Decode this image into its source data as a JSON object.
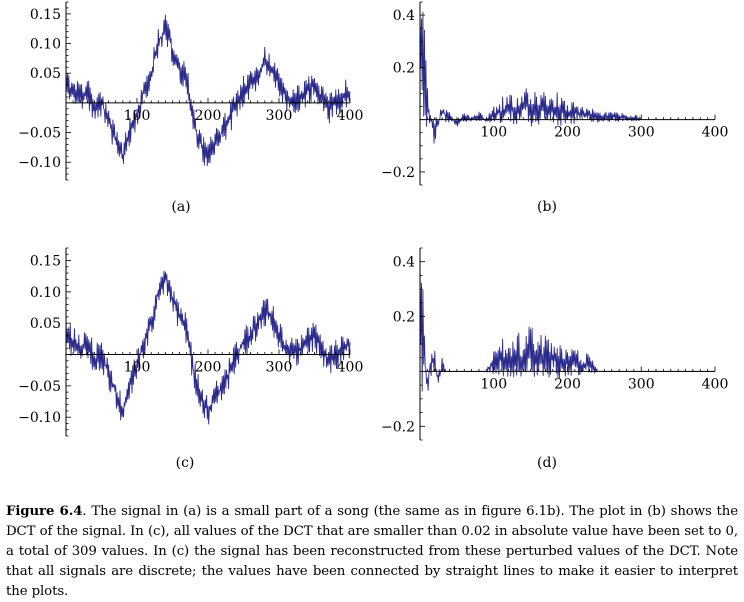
{
  "figure": {
    "caption_label": "Figure 6.4",
    "caption_text": ". The signal in (a) is a small part of a song (the same as in figure 6.1b). The plot in (b) shows the DCT of the signal. In (c), all values of the DCT that are smaller than 0.02 in absolute value have been set to 0, a total of 309 values. In (c) the signal has been reconstructed from these perturbed values of the DCT. Note that all signals are discrete; the values have been connected by straight lines to make it easier to interpret the plots."
  },
  "colors": {
    "line": "#2b2b8c",
    "axis": "#000000"
  },
  "chart_data": [
    {
      "id": "a",
      "type": "line",
      "panel_label": "(a)",
      "xlim": [
        0,
        400
      ],
      "ylim": [
        -0.13,
        0.17
      ],
      "xticks": [
        100,
        200,
        300,
        400
      ],
      "xtick_labels": [
        "100",
        "200",
        "300",
        "400"
      ],
      "yticks": [
        0.15,
        0.1,
        0.05,
        -0.05,
        -0.1
      ],
      "ytick_labels": [
        "0.15",
        "0.10",
        "0.05",
        "−0.05",
        "−0.10"
      ],
      "x": [
        0,
        10,
        20,
        30,
        40,
        50,
        60,
        70,
        80,
        90,
        100,
        110,
        120,
        130,
        140,
        150,
        160,
        170,
        180,
        190,
        200,
        210,
        220,
        230,
        240,
        250,
        260,
        270,
        280,
        290,
        300,
        310,
        320,
        330,
        340,
        350,
        360,
        370,
        380,
        390,
        400
      ],
      "values": [
        0.03,
        0.02,
        0.01,
        0.02,
        -0.01,
        0,
        -0.03,
        -0.06,
        -0.09,
        -0.05,
        -0.02,
        0.02,
        0.05,
        0.1,
        0.13,
        0.09,
        0.06,
        0.04,
        -0.03,
        -0.07,
        -0.09,
        -0.07,
        -0.05,
        -0.03,
        0,
        0.02,
        0.03,
        0.05,
        0.07,
        0.06,
        0.03,
        0.01,
        0,
        0.01,
        0.02,
        0.03,
        0.01,
        -0.01,
        0,
        0.01,
        0.02
      ]
    },
    {
      "id": "b",
      "type": "line",
      "panel_label": "(b)",
      "xlim": [
        0,
        400
      ],
      "ylim": [
        -0.25,
        0.45
      ],
      "xticks": [
        100,
        200,
        300,
        400
      ],
      "xtick_labels": [
        "100",
        "200",
        "300",
        "400"
      ],
      "yticks": [
        0.4,
        0.2,
        -0.2
      ],
      "ytick_labels": [
        "0.4",
        "0.2",
        "−0.2"
      ],
      "x": [
        0,
        10,
        20,
        30,
        40,
        50,
        60,
        70,
        80,
        90,
        100,
        110,
        120,
        130,
        140,
        150,
        160,
        170,
        180,
        190,
        200,
        210,
        220,
        230,
        240,
        250,
        260,
        270,
        280,
        290,
        300
      ],
      "values": [
        0.4,
        0.05,
        -0.05,
        0.03,
        0.01,
        -0.01,
        0.01,
        0,
        0.01,
        0,
        0.02,
        0.03,
        0.05,
        0.04,
        0.05,
        0.05,
        0.04,
        0.05,
        0.03,
        0.05,
        0.02,
        0.03,
        0.02,
        0.02,
        0.01,
        0.01,
        0.01,
        0.01,
        0.005,
        0.005,
        0.004
      ]
    },
    {
      "id": "c",
      "type": "line",
      "panel_label": "(c)",
      "xlim": [
        0,
        400
      ],
      "ylim": [
        -0.13,
        0.17
      ],
      "xticks": [
        100,
        200,
        300,
        400
      ],
      "xtick_labels": [
        "100",
        "200",
        "300",
        "400"
      ],
      "yticks": [
        0.15,
        0.1,
        0.05,
        -0.05,
        -0.1
      ],
      "ytick_labels": [
        "0.15",
        "0.10",
        "0.05",
        "−0.05",
        "−0.10"
      ],
      "x": [
        0,
        10,
        20,
        30,
        40,
        50,
        60,
        70,
        80,
        90,
        100,
        110,
        120,
        130,
        140,
        150,
        160,
        170,
        180,
        190,
        200,
        210,
        220,
        230,
        240,
        250,
        260,
        270,
        280,
        290,
        300,
        310,
        320,
        330,
        340,
        350,
        360,
        370,
        380,
        390,
        400
      ],
      "values": [
        0.03,
        0.02,
        0.01,
        0.02,
        -0.01,
        0,
        -0.03,
        -0.06,
        -0.09,
        -0.05,
        -0.02,
        0.02,
        0.05,
        0.1,
        0.13,
        0.09,
        0.06,
        0.04,
        -0.03,
        -0.07,
        -0.09,
        -0.07,
        -0.05,
        -0.03,
        0,
        0.02,
        0.03,
        0.05,
        0.07,
        0.06,
        0.03,
        0.01,
        0,
        0.01,
        0.02,
        0.03,
        0.01,
        -0.01,
        0,
        0.01,
        0.02
      ]
    },
    {
      "id": "d",
      "type": "line",
      "panel_label": "(d)",
      "xlim": [
        0,
        400
      ],
      "ylim": [
        -0.25,
        0.45
      ],
      "xticks": [
        100,
        200,
        300,
        400
      ],
      "xtick_labels": [
        "100",
        "200",
        "300",
        "400"
      ],
      "yticks": [
        0.4,
        0.2,
        -0.2
      ],
      "ytick_labels": [
        "0.4",
        "0.2",
        "−0.2"
      ],
      "x": [
        0,
        5,
        10,
        15,
        20,
        25,
        30,
        35,
        40,
        60,
        90,
        100,
        110,
        120,
        130,
        140,
        150,
        160,
        170,
        180,
        190,
        200,
        210,
        220,
        230,
        240,
        250,
        260,
        300,
        400
      ],
      "values": [
        0.4,
        0.08,
        -0.06,
        0.05,
        0.03,
        -0.03,
        0.02,
        0,
        0,
        0,
        0,
        0.03,
        0.05,
        0.04,
        0.06,
        0.05,
        0.07,
        0.05,
        0.06,
        0.04,
        0.05,
        0.03,
        0.04,
        0.02,
        0.03,
        0,
        0,
        0,
        0,
        0
      ]
    }
  ]
}
